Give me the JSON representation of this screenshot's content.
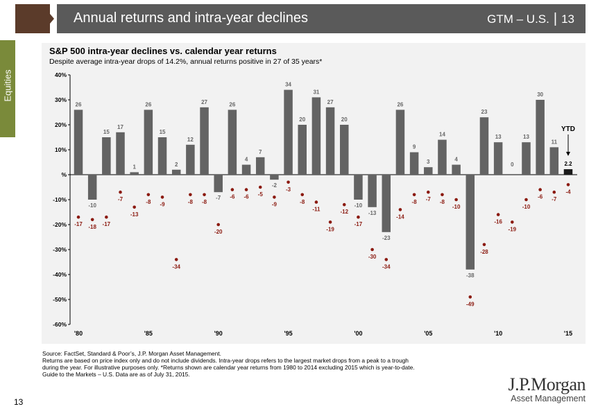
{
  "header": {
    "title": "Annual returns and intra-year declines",
    "section": "GTM – U.S.",
    "separator": "|",
    "page": "13"
  },
  "side_tab": "Equities",
  "footer": {
    "source": "Source: FactSet, Standard & Poor’s, J.P. Morgan Asset Management.",
    "notes": [
      "Returns are based on price index only and do not include dividends. Intra-year drops refers to the largest market drops from a peak to a trough",
      "during the year. For illustrative purposes only. *Returns shown are calendar year returns from 1980 to 2014 excluding 2015 which is year-to-date.",
      "Guide to the Markets – U.S. Data are as of July 31, 2015."
    ],
    "page_number": "13"
  },
  "logo": {
    "name": "J.P.Morgan",
    "sub": "Asset Management"
  },
  "colors": {
    "bar": "#636363",
    "ytd_bar": "#1a1a1a",
    "dot": "#8b1a10",
    "header": "#5a5a5a",
    "brown": "#5b3b2a",
    "green_tab": "#7a8a3a"
  },
  "chart_data": {
    "type": "bar",
    "title": "S&P 500 intra-year declines vs. calendar year returns",
    "subtitle": "Despite average intra-year drops of 14.2%, annual returns positive in 27 of 35 years*",
    "years": [
      1980,
      1981,
      1982,
      1983,
      1984,
      1985,
      1986,
      1987,
      1988,
      1989,
      1990,
      1991,
      1992,
      1993,
      1994,
      1995,
      1996,
      1997,
      1998,
      1999,
      2000,
      2001,
      2002,
      2003,
      2004,
      2005,
      2006,
      2007,
      2008,
      2009,
      2010,
      2011,
      2012,
      2013,
      2014,
      2015
    ],
    "annual_returns": [
      26,
      -10,
      15,
      17,
      1,
      26,
      15,
      2,
      12,
      27,
      -7,
      26,
      4,
      7,
      -2,
      34,
      20,
      31,
      27,
      20,
      -10,
      -13,
      -23,
      26,
      9,
      3,
      14,
      4,
      -38,
      23,
      13,
      0,
      13,
      30,
      11,
      2.2
    ],
    "intra_year_declines": [
      -17,
      -18,
      -17,
      -7,
      -13,
      -8,
      -9,
      -34,
      -8,
      -8,
      -20,
      -6,
      -6,
      -5,
      -9,
      -3,
      -8,
      -11,
      -19,
      -12,
      -17,
      -30,
      -34,
      -14,
      -8,
      -7,
      -8,
      -10,
      -49,
      -28,
      -16,
      -19,
      -10,
      -6,
      -7,
      -4
    ],
    "ytd_label": "YTD",
    "x_tick_labels": [
      {
        "year": 1980,
        "label": "'80"
      },
      {
        "year": 1985,
        "label": "'85"
      },
      {
        "year": 1990,
        "label": "'90"
      },
      {
        "year": 1995,
        "label": "'95"
      },
      {
        "year": 2000,
        "label": "'00"
      },
      {
        "year": 2005,
        "label": "'05"
      },
      {
        "year": 2010,
        "label": "'10"
      },
      {
        "year": 2015,
        "label": "'15"
      }
    ],
    "y_ticks": [
      {
        "value": 40,
        "label": "40%"
      },
      {
        "value": 30,
        "label": "30%"
      },
      {
        "value": 20,
        "label": "20%"
      },
      {
        "value": 10,
        "label": "10%"
      },
      {
        "value": 0,
        "label": "%"
      },
      {
        "value": -10,
        "label": "-10%"
      },
      {
        "value": -20,
        "label": "-20%"
      },
      {
        "value": -30,
        "label": "-30%"
      },
      {
        "value": -40,
        "label": "-40%"
      },
      {
        "value": -50,
        "label": "-50%"
      },
      {
        "value": -60,
        "label": "-60%"
      }
    ],
    "ylim": [
      -60,
      40
    ],
    "grid": false,
    "legend": "none"
  }
}
